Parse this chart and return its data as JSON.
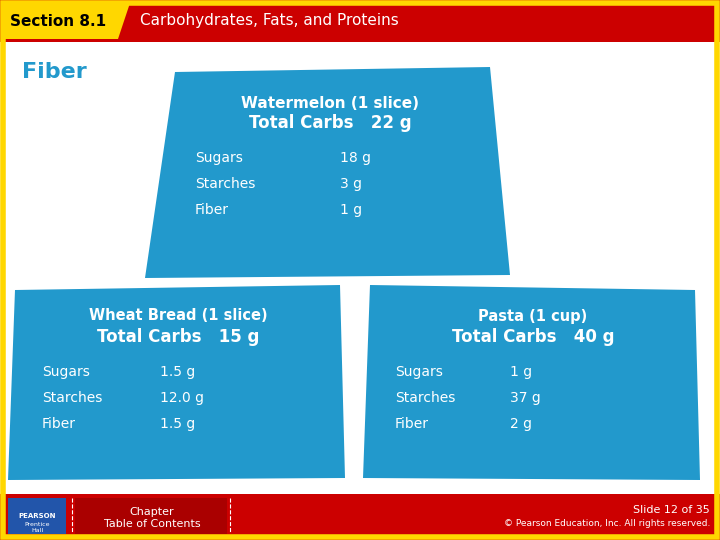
{
  "title_section": "Section 8.1",
  "title_main": "Carbohydrates, Fats, and Proteins",
  "slide_label": "Fiber",
  "header_red": "#CC0000",
  "header_yellow": "#FFD700",
  "card_blue": "#2299CC",
  "bg_color": "#FFFFFF",
  "footer_red": "#CC0000",
  "text_white": "#FFFFFF",
  "text_blue": "#2299CC",
  "text_black": "#000000",
  "border_yellow": "#FFD700",
  "watermelon": {
    "title": "Watermelon (1 slice)",
    "total_label": "Total Carbs",
    "total_value": "22 g",
    "rows": [
      [
        "Sugars",
        "18 g"
      ],
      [
        "Starches",
        "3 g"
      ],
      [
        "Fiber",
        "1 g"
      ]
    ]
  },
  "wheat_bread": {
    "title": "Wheat Bread (1 slice)",
    "total_label": "Total Carbs",
    "total_value": "15 g",
    "rows": [
      [
        "Sugars",
        "1.5 g"
      ],
      [
        "Starches",
        "12.0 g"
      ],
      [
        "Fiber",
        "1.5 g"
      ]
    ]
  },
  "pasta": {
    "title": "Pasta (1 cup)",
    "total_label": "Total Carbs",
    "total_value": "40 g",
    "rows": [
      [
        "Sugars",
        "1 g"
      ],
      [
        "Starches",
        "37 g"
      ],
      [
        "Fiber",
        "2 g"
      ]
    ]
  },
  "footer_text1": "Chapter",
  "footer_text2": "Table of Contents",
  "slide_number": "Slide 12 of 35",
  "copyright": "© Pearson Education, Inc. All rights reserved."
}
